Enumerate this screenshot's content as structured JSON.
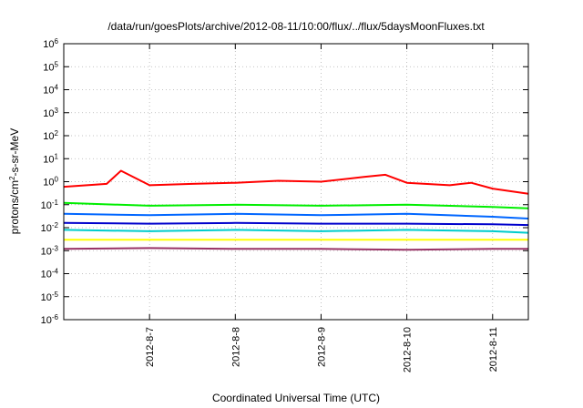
{
  "chart_data": {
    "type": "line",
    "title": "/data/run/goesPlots/archive/2012-08-11/10:00/flux/../flux/5daysMoonFluxes.txt",
    "xlabel": "Coordinated Universal Time (UTC)",
    "ylabel": {
      "base": "protons/cm",
      "sup": "2",
      "rest": "-s-sr-MeV"
    },
    "yscale": "log",
    "ylim_exp": [
      -6,
      6
    ],
    "y_tick_labels": [
      {
        "base": "10",
        "exp": "-6"
      },
      {
        "base": "10",
        "exp": "-5"
      },
      {
        "base": "10",
        "exp": "-4"
      },
      {
        "base": "10",
        "exp": "-3"
      },
      {
        "base": "10",
        "exp": "-2"
      },
      {
        "base": "10",
        "exp": "-1"
      },
      {
        "base": "10",
        "exp": "0"
      },
      {
        "base": "10",
        "exp": "1"
      },
      {
        "base": "10",
        "exp": "2"
      },
      {
        "base": "10",
        "exp": "3"
      },
      {
        "base": "10",
        "exp": "4"
      },
      {
        "base": "10",
        "exp": "5"
      },
      {
        "base": "10",
        "exp": "6"
      }
    ],
    "xlim": [
      "2012-08-06 00:00",
      "2012-08-11 10:00"
    ],
    "x_ticks": [
      "2012-8-7",
      "2012-8-8",
      "2012-8-9",
      "2012-8-10",
      "2012-8-11"
    ],
    "grid": true,
    "series": [
      {
        "color": "#ff0000",
        "x": [
          "2012-08-06 00:00",
          "2012-08-06 12:00",
          "2012-08-06 16:00",
          "2012-08-07 00:00",
          "2012-08-07 12:00",
          "2012-08-08 00:00",
          "2012-08-08 12:00",
          "2012-08-09 00:00",
          "2012-08-09 12:00",
          "2012-08-09 18:00",
          "2012-08-10 00:00",
          "2012-08-10 12:00",
          "2012-08-10 18:00",
          "2012-08-11 00:00",
          "2012-08-11 10:00"
        ],
        "y": [
          0.6,
          0.8,
          3.0,
          0.7,
          0.8,
          0.9,
          1.1,
          1.0,
          1.6,
          2.0,
          0.9,
          0.7,
          0.9,
          0.5,
          0.3
        ]
      },
      {
        "color": "#00ee00",
        "x": [
          "2012-08-06 00:00",
          "2012-08-07 00:00",
          "2012-08-08 00:00",
          "2012-08-09 00:00",
          "2012-08-10 00:00",
          "2012-08-11 00:00",
          "2012-08-11 10:00"
        ],
        "y": [
          0.12,
          0.09,
          0.1,
          0.09,
          0.1,
          0.08,
          0.07
        ]
      },
      {
        "color": "#0066ff",
        "x": [
          "2012-08-06 00:00",
          "2012-08-07 00:00",
          "2012-08-08 00:00",
          "2012-08-09 00:00",
          "2012-08-10 00:00",
          "2012-08-11 00:00",
          "2012-08-11 10:00"
        ],
        "y": [
          0.04,
          0.035,
          0.04,
          0.035,
          0.04,
          0.03,
          0.025
        ]
      },
      {
        "color": "#0000cc",
        "x": [
          "2012-08-06 00:00",
          "2012-08-07 00:00",
          "2012-08-08 00:00",
          "2012-08-09 00:00",
          "2012-08-10 00:00",
          "2012-08-11 00:00",
          "2012-08-11 10:00"
        ],
        "y": [
          0.016,
          0.015,
          0.016,
          0.015,
          0.015,
          0.014,
          0.013
        ]
      },
      {
        "color": "#00cccc",
        "x": [
          "2012-08-06 00:00",
          "2012-08-07 00:00",
          "2012-08-08 00:00",
          "2012-08-09 00:00",
          "2012-08-10 00:00",
          "2012-08-11 00:00",
          "2012-08-11 10:00"
        ],
        "y": [
          0.008,
          0.007,
          0.008,
          0.007,
          0.008,
          0.007,
          0.006
        ]
      },
      {
        "color": "#ffff00",
        "x": [
          "2012-08-06 00:00",
          "2012-08-07 00:00",
          "2012-08-08 00:00",
          "2012-08-09 00:00",
          "2012-08-10 00:00",
          "2012-08-11 00:00",
          "2012-08-11 10:00"
        ],
        "y": [
          0.003,
          0.003,
          0.003,
          0.003,
          0.003,
          0.003,
          0.003
        ]
      },
      {
        "color": "#993366",
        "x": [
          "2012-08-06 00:00",
          "2012-08-07 00:00",
          "2012-08-08 00:00",
          "2012-08-09 00:00",
          "2012-08-10 00:00",
          "2012-08-11 00:00",
          "2012-08-11 10:00"
        ],
        "y": [
          0.0012,
          0.0013,
          0.0012,
          0.0012,
          0.0011,
          0.0012,
          0.0012
        ]
      }
    ]
  }
}
